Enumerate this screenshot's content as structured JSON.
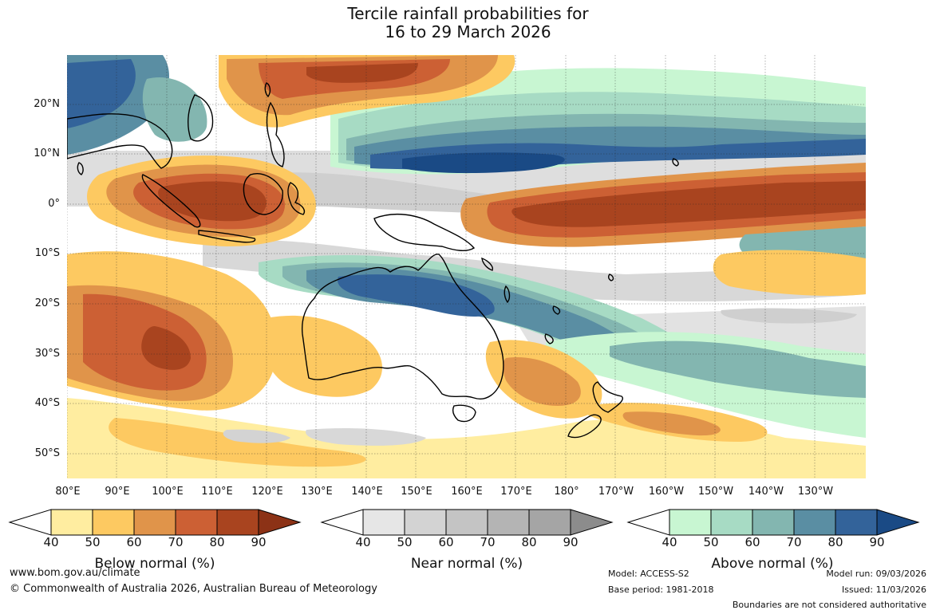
{
  "title": {
    "line1": "Tercile rainfall probabilities for",
    "line2": "16 to 29 March 2026"
  },
  "map": {
    "lat_labels": [
      "20°N",
      "10°N",
      "0°",
      "10°S",
      "20°S",
      "30°S",
      "40°S",
      "50°S"
    ],
    "lon_labels": [
      "80°E",
      "90°E",
      "100°E",
      "110°E",
      "120°E",
      "130°E",
      "140°E",
      "150°E",
      "160°E",
      "170°E",
      "180°",
      "170°W",
      "160°W",
      "150°W",
      "140°W",
      "130°W"
    ]
  },
  "colorbars": [
    {
      "name": "below",
      "title": "Below normal (%)",
      "ticks": [
        "40",
        "50",
        "60",
        "70",
        "80",
        "90"
      ],
      "colors": [
        "#ffeda0",
        "#fdc961",
        "#e0944a",
        "#cc6034",
        "#a9441f",
        "#8c3216"
      ]
    },
    {
      "name": "near",
      "title": "Near normal (%)",
      "ticks": [
        "40",
        "50",
        "60",
        "70",
        "80",
        "90"
      ],
      "colors": [
        "#e6e6e6",
        "#d3d3d3",
        "#c4c4c4",
        "#b4b4b4",
        "#a5a5a5",
        "#8c8c8c"
      ]
    },
    {
      "name": "above",
      "title": "Above normal (%)",
      "ticks": [
        "40",
        "50",
        "60",
        "70",
        "80",
        "90"
      ],
      "colors": [
        "#c8f6d2",
        "#a7dbc4",
        "#83b6b0",
        "#5a8ea3",
        "#33639a",
        "#1a4a85"
      ]
    }
  ],
  "footer": {
    "website": "www.bom.gov.au/climate",
    "copyright": "© Commonwealth of Australia 2026, Australian Bureau of Meteorology",
    "model": "Model: ACCESS-S2",
    "base_period": "Base period: 1981-2018",
    "model_run": "Model run: 09/03/2026",
    "issued": "Issued: 11/03/2026",
    "disclaimer": "Boundaries are not considered authoritative"
  }
}
